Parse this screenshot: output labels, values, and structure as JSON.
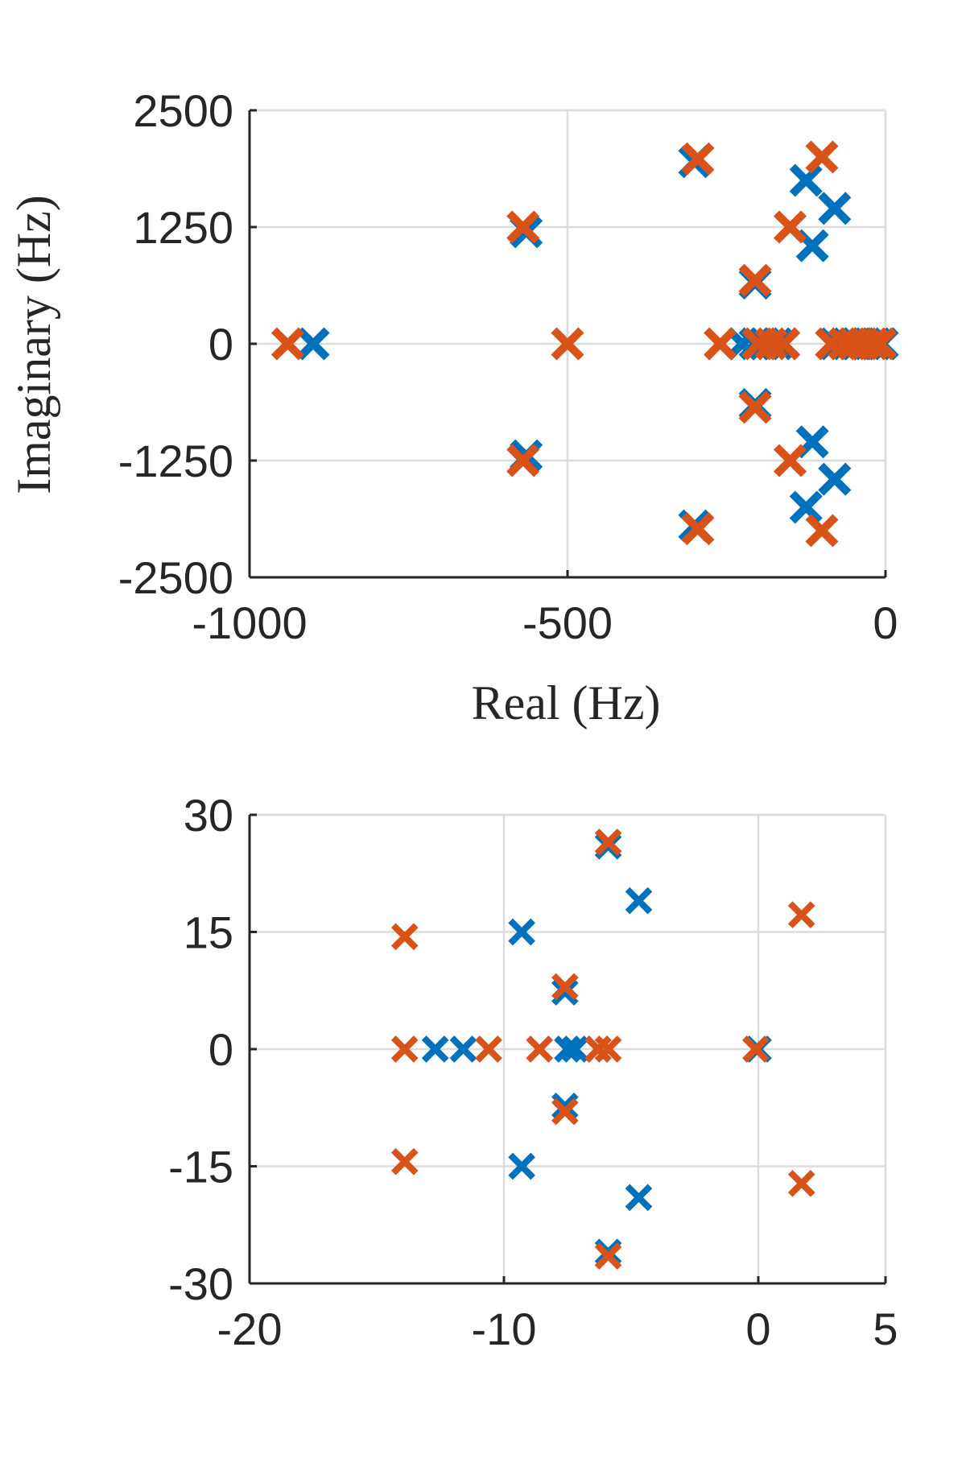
{
  "chart_data": [
    {
      "type": "scatter",
      "title": "",
      "xlabel": "Real (Hz)",
      "ylabel": "Imaginary (Hz)",
      "xlim": [
        -1000,
        0
      ],
      "ylim": [
        -2500,
        2500
      ],
      "xticks": [
        -1000,
        -500,
        0
      ],
      "xtick_labels": [
        "-1000",
        "-500",
        "0"
      ],
      "yticks": [
        2500,
        1250,
        0,
        -1250,
        -2500
      ],
      "ytick_labels": [
        "2500",
        "1250",
        "0",
        "-1250",
        "-2500"
      ],
      "grid": true,
      "marker": "x",
      "series": [
        {
          "color": "#0072BD",
          "points": [
            [
              -900,
              0
            ],
            [
              -565,
              1200
            ],
            [
              -565,
              -1200
            ],
            [
              -300,
              1950
            ],
            [
              -300,
              -1950
            ],
            [
              -125,
              1750
            ],
            [
              -125,
              -1750
            ],
            [
              -80,
              1450
            ],
            [
              -80,
              -1450
            ],
            [
              -115,
              1050
            ],
            [
              -115,
              -1050
            ],
            [
              -205,
              650
            ],
            [
              -205,
              -650
            ],
            [
              -225,
              0
            ],
            [
              -205,
              0
            ],
            [
              -190,
              0
            ],
            [
              -170,
              0
            ],
            [
              -160,
              0
            ],
            [
              -80,
              0
            ],
            [
              -60,
              0
            ],
            [
              -45,
              0
            ],
            [
              -30,
              0
            ],
            [
              -15,
              0
            ],
            [
              -5,
              0
            ]
          ]
        },
        {
          "color": "#D95319",
          "points": [
            [
              -940,
              0
            ],
            [
              -570,
              1250
            ],
            [
              -570,
              -1250
            ],
            [
              -295,
              1980
            ],
            [
              -295,
              -1980
            ],
            [
              -100,
              2000
            ],
            [
              -100,
              -2000
            ],
            [
              -150,
              1250
            ],
            [
              -150,
              -1250
            ],
            [
              -205,
              680
            ],
            [
              -205,
              -680
            ],
            [
              -500,
              0
            ],
            [
              -260,
              0
            ],
            [
              -200,
              0
            ],
            [
              -180,
              0
            ],
            [
              -160,
              0
            ],
            [
              -85,
              0
            ],
            [
              -65,
              0
            ],
            [
              -50,
              0
            ],
            [
              -35,
              0
            ],
            [
              -20,
              0
            ],
            [
              -8,
              0
            ]
          ]
        }
      ]
    },
    {
      "type": "scatter",
      "title": "",
      "xlabel": "",
      "ylabel": "",
      "xlim": [
        -20,
        5
      ],
      "ylim": [
        -30,
        30
      ],
      "xticks": [
        -20,
        -10,
        0,
        5
      ],
      "xtick_labels": [
        "-20",
        "-10",
        "0",
        "5"
      ],
      "yticks": [
        30,
        15,
        0,
        -15,
        -30
      ],
      "ytick_labels": [
        "30",
        "15",
        "0",
        "-15",
        "-30"
      ],
      "grid": true,
      "marker": "x",
      "series": [
        {
          "color": "#0072BD",
          "points": [
            [
              -12.7,
              0
            ],
            [
              -11.6,
              0
            ],
            [
              -9.3,
              15
            ],
            [
              -9.3,
              -15
            ],
            [
              -7.6,
              7.3
            ],
            [
              -7.6,
              -7.3
            ],
            [
              -7.5,
              0
            ],
            [
              -7.2,
              0
            ],
            [
              -6.3,
              0
            ],
            [
              -5.9,
              26
            ],
            [
              -5.9,
              -26
            ],
            [
              -4.7,
              19
            ],
            [
              -4.7,
              -19
            ],
            [
              0,
              0
            ]
          ]
        },
        {
          "color": "#D95319",
          "points": [
            [
              -13.9,
              14.4
            ],
            [
              -13.9,
              -14.4
            ],
            [
              -13.9,
              0
            ],
            [
              -10.6,
              0
            ],
            [
              -8.6,
              0
            ],
            [
              -7.6,
              8
            ],
            [
              -7.6,
              -8
            ],
            [
              -6.3,
              0
            ],
            [
              -5.9,
              0
            ],
            [
              -5.9,
              26.5
            ],
            [
              -5.9,
              -26.5
            ],
            [
              -0.1,
              0
            ],
            [
              1.7,
              17.2
            ],
            [
              1.7,
              -17.2
            ]
          ]
        }
      ]
    }
  ]
}
